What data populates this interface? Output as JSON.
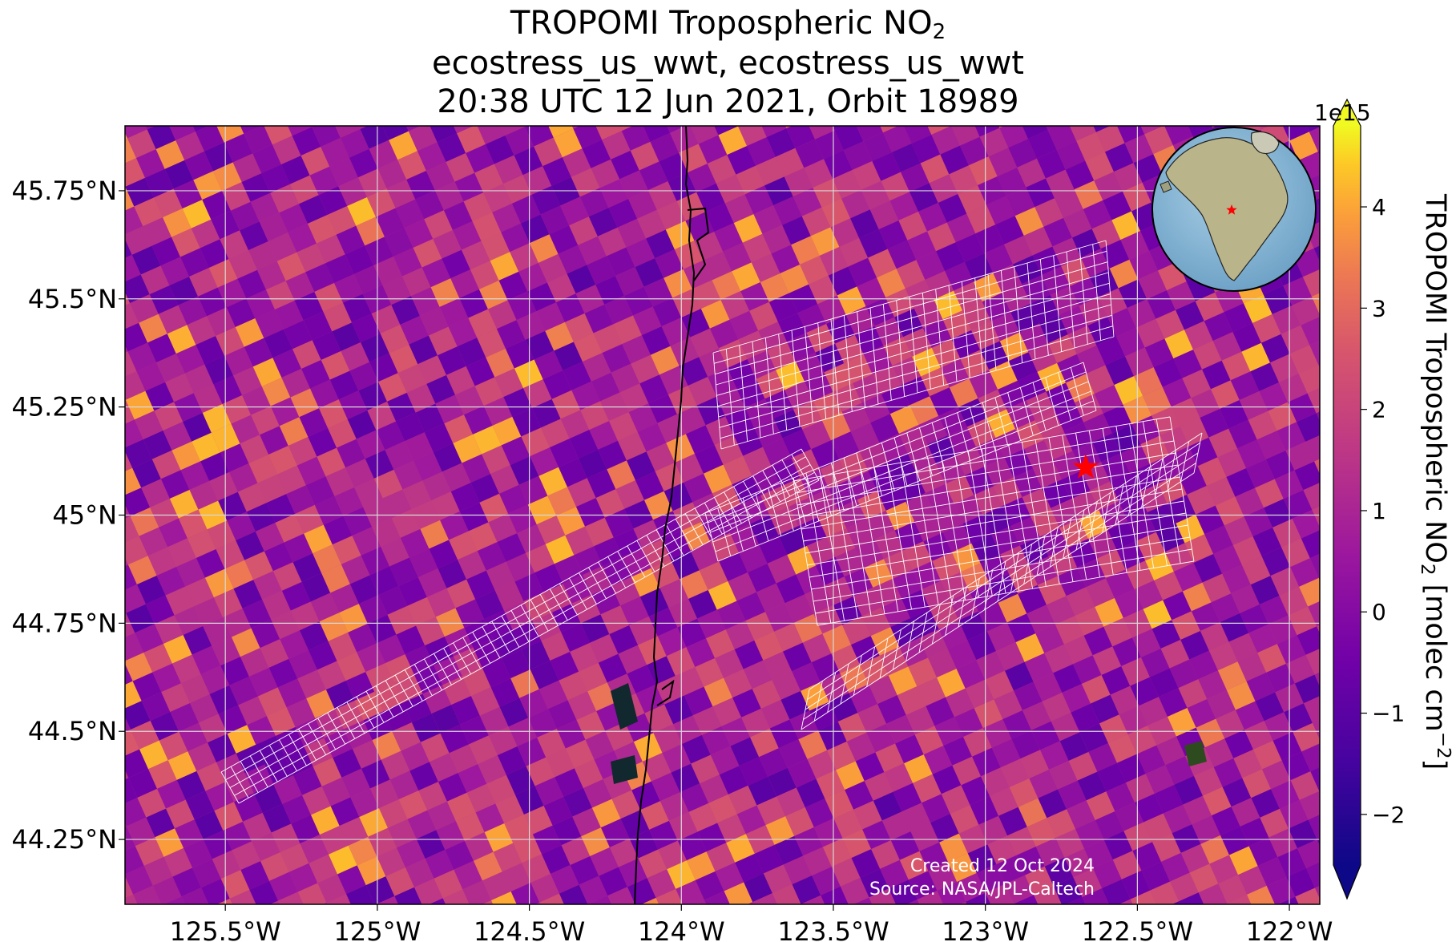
{
  "title": {
    "line1_main": "TROPOMI Tropospheric NO",
    "line1_sub": "2",
    "line2": "ecostress_us_wwt, ecostress_us_wwt",
    "line3": "20:38 UTC 12 Jun 2021, Orbit 18989"
  },
  "axes": {
    "lon_ticks": [
      "125.5°W",
      "125°W",
      "124.5°W",
      "124°W",
      "123.5°W",
      "123°W",
      "122.5°W",
      "122°W"
    ],
    "lon_values": [
      -125.5,
      -125.0,
      -124.5,
      -124.0,
      -123.5,
      -123.0,
      -122.5,
      -122.0
    ],
    "lat_ticks": [
      "45.75°N",
      "45.5°N",
      "45.25°N",
      "45°N",
      "44.75°N",
      "44.5°N",
      "44.25°N"
    ],
    "lat_values": [
      45.75,
      45.5,
      45.25,
      45.0,
      44.75,
      44.5,
      44.25
    ],
    "lon_range": [
      -125.83,
      -121.9
    ],
    "lat_range": [
      44.1,
      45.9
    ]
  },
  "colorbar": {
    "exponent": "1e15",
    "label_main": "TROPOMI Tropospheric NO",
    "label_sub": "2",
    "label_units_pre": " [molec cm",
    "label_units_sup": "−2",
    "label_units_post": "]",
    "ticks": [
      "4",
      "3",
      "2",
      "1",
      "0",
      "−1",
      "−2"
    ],
    "tick_values": [
      4,
      3,
      2,
      1,
      0,
      -1,
      -2
    ],
    "range": [
      -2.5,
      4.8
    ],
    "colormap": "plasma",
    "extend": "both"
  },
  "target": {
    "lon": -122.67,
    "lat": 45.11,
    "marker": "red-star",
    "color": "#ff0000"
  },
  "credits": {
    "created": "Created 12 Oct 2024",
    "source": "Source: NASA/JPL-Caltech"
  },
  "inset": {
    "type": "globe",
    "marker_color": "#ff0000"
  },
  "colors": {
    "grid": "#d9d9d9",
    "coastline": "#000000",
    "footprint": "#ffffff",
    "star": "#ff0000"
  }
}
